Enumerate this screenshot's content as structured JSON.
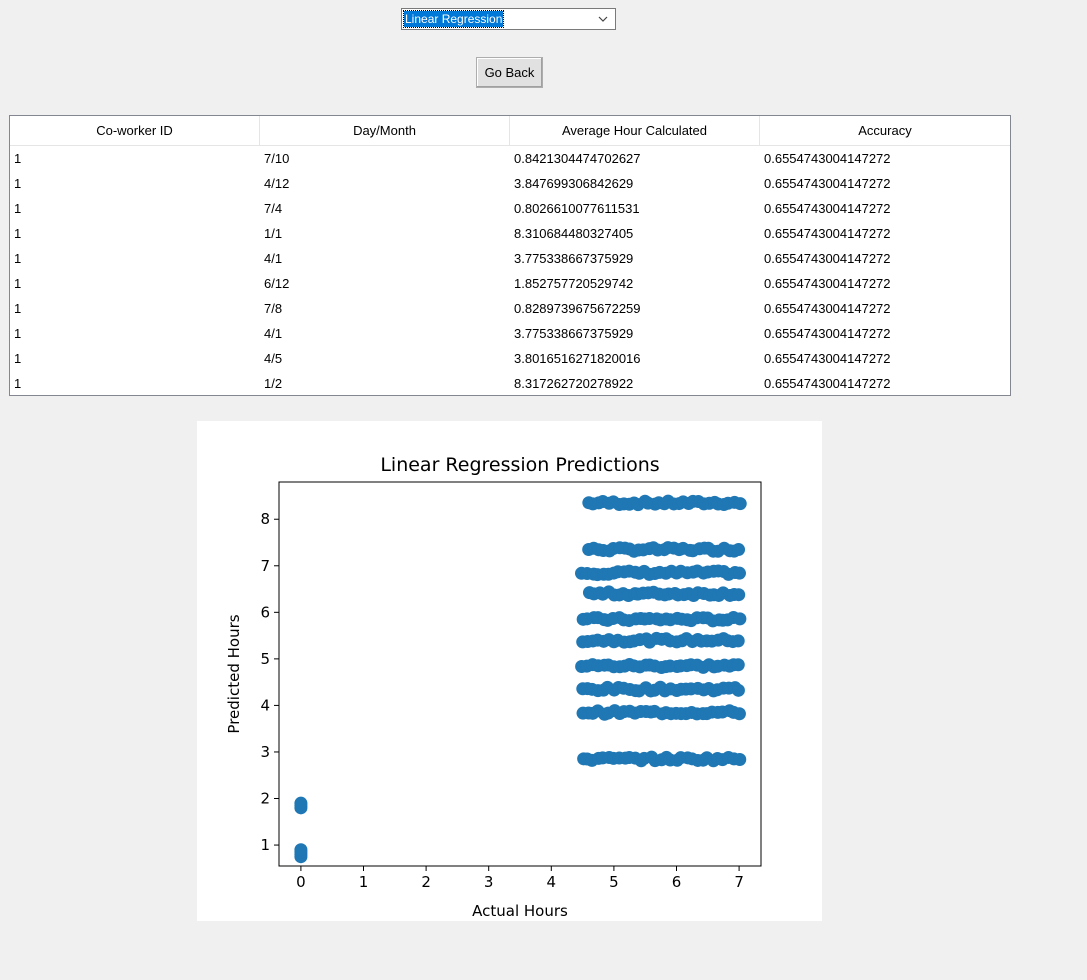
{
  "selector": {
    "value": "Linear Regression"
  },
  "buttons": {
    "go_back": "Go Back"
  },
  "table": {
    "columns": [
      "Co-worker ID",
      "Day/Month",
      "Average Hour Calculated",
      "Accuracy"
    ],
    "rows": [
      [
        "1",
        "7/10",
        "0.8421304474702627",
        "0.6554743004147272"
      ],
      [
        "1",
        "4/12",
        "3.847699306842629",
        "0.6554743004147272"
      ],
      [
        "1",
        "7/4",
        "0.8026610077611531",
        "0.6554743004147272"
      ],
      [
        "1",
        "1/1",
        "8.310684480327405",
        "0.6554743004147272"
      ],
      [
        "1",
        "4/1",
        "3.775338667375929",
        "0.6554743004147272"
      ],
      [
        "1",
        "6/12",
        "1.852757720529742",
        "0.6554743004147272"
      ],
      [
        "1",
        "7/8",
        "0.8289739675672259",
        "0.6554743004147272"
      ],
      [
        "1",
        "4/1",
        "3.775338667375929",
        "0.6554743004147272"
      ],
      [
        "1",
        "4/5",
        "3.8016516271820016",
        "0.6554743004147272"
      ],
      [
        "1",
        "1/2",
        "8.317262720278922",
        "0.6554743004147272"
      ]
    ]
  },
  "chart_data": {
    "type": "scatter",
    "title": "Linear Regression Predictions",
    "xlabel": "Actual Hours",
    "ylabel": "Predicted Hours",
    "xlim": [
      -0.35,
      7.35
    ],
    "ylim": [
      0.55,
      8.8
    ],
    "xticks": [
      "0",
      "1",
      "2",
      "3",
      "4",
      "5",
      "6",
      "7"
    ],
    "yticks": [
      "1",
      "2",
      "3",
      "4",
      "5",
      "6",
      "7",
      "8"
    ],
    "color": "#1f77b4",
    "clusters": [
      {
        "x": 0,
        "y": [
          0.75,
          0.8,
          0.85,
          0.9,
          1.8,
          1.85,
          1.9
        ]
      }
    ],
    "bands": [
      {
        "y": 8.35,
        "x_range": [
          4.6,
          7.0
        ]
      },
      {
        "y": 7.35,
        "x_range": [
          4.6,
          7.0
        ]
      },
      {
        "y": 6.85,
        "x_range": [
          4.5,
          7.0
        ]
      },
      {
        "y": 6.4,
        "x_range": [
          4.6,
          7.0
        ]
      },
      {
        "y": 5.85,
        "x_range": [
          4.5,
          7.0
        ]
      },
      {
        "y": 5.4,
        "x_range": [
          4.5,
          7.0
        ]
      },
      {
        "y": 4.85,
        "x_range": [
          4.5,
          7.0
        ]
      },
      {
        "y": 4.35,
        "x_range": [
          4.5,
          7.0
        ]
      },
      {
        "y": 3.85,
        "x_range": [
          4.5,
          7.0
        ]
      },
      {
        "y": 2.85,
        "x_range": [
          4.5,
          7.0
        ]
      }
    ]
  }
}
